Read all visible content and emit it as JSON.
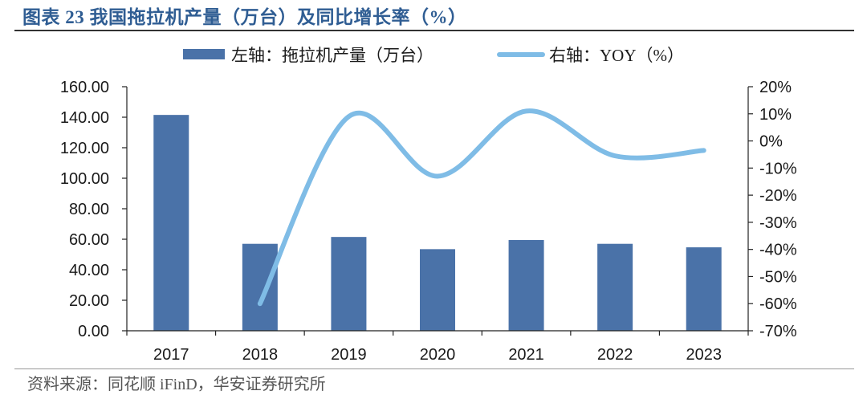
{
  "title": "图表 23 我国拖拉机产量（万台）及同比增长率（%）",
  "source": "资料来源：同花顺 iFinD，华安证券研究所",
  "colors": {
    "bar": "#4a72a8",
    "line": "#7fbce6",
    "title": "#2f5d93"
  },
  "chart_data": {
    "type": "bar+line",
    "categories": [
      "2017",
      "2018",
      "2019",
      "2020",
      "2021",
      "2022",
      "2023"
    ],
    "series": [
      {
        "name": "左轴：拖拉机产量（万台）",
        "type": "bar",
        "axis": "left",
        "values": [
          141.5,
          57.0,
          61.5,
          53.5,
          59.5,
          57.0,
          54.7
        ]
      },
      {
        "name": "右轴：YOY（%）",
        "type": "line",
        "axis": "right",
        "smooth": true,
        "values": [
          null,
          -60.0,
          9.0,
          -13.0,
          11.0,
          -5.5,
          -3.5
        ]
      }
    ],
    "left_axis": {
      "ylim": [
        0,
        160
      ],
      "ticks": [
        "0.00",
        "20.00",
        "40.00",
        "60.00",
        "80.00",
        "100.00",
        "120.00",
        "140.00",
        "160.00"
      ]
    },
    "right_axis": {
      "ylim": [
        -70,
        20
      ],
      "ticks": [
        "-70%",
        "-60%",
        "-50%",
        "-40%",
        "-30%",
        "-20%",
        "-10%",
        "0%",
        "10%",
        "20%"
      ]
    },
    "legend_position": "top",
    "grid": false
  }
}
